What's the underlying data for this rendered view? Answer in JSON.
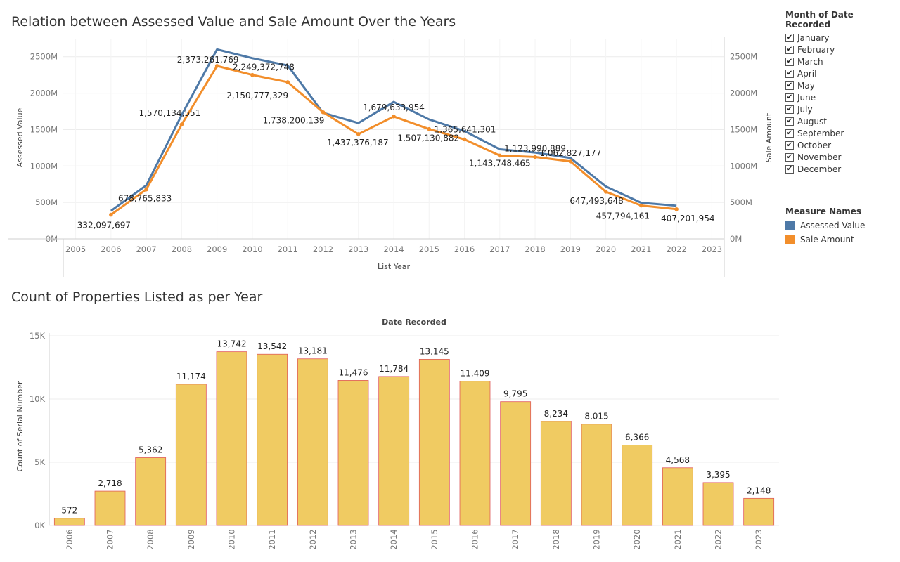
{
  "line_chart_title": "Relation between Assessed Value and Sale Amount Over the Years",
  "bar_chart_title": "Count of Properties Listed as per Year",
  "filter_legend": {
    "title": "Month of Date Recorded",
    "months": [
      "January",
      "February",
      "March",
      "April",
      "May",
      "June",
      "July",
      "August",
      "September",
      "October",
      "November",
      "December"
    ],
    "checkmark": "✔"
  },
  "measure_legend": {
    "title": "Measure Names",
    "items": [
      {
        "label": "Assessed Value",
        "color": "#4e79a7"
      },
      {
        "label": "Sale Amount",
        "color": "#f28e2b"
      }
    ]
  },
  "colors": {
    "assessed": "#4e79a7",
    "sale": "#f28e2b",
    "bar_fill": "#f0cb62",
    "bar_stroke": "#e05a5a",
    "grid": "#ececec",
    "axis": "#cfcfcf"
  },
  "chart_data": [
    {
      "type": "line",
      "title": "Relation between Assessed Value and Sale Amount Over the Years",
      "xlabel": "List Year",
      "ylabel": "Assessed Value",
      "y2label": "Sale Amount",
      "x_ticks": [
        "2005",
        "2006",
        "2007",
        "2008",
        "2009",
        "2010",
        "2011",
        "2012",
        "2013",
        "2014",
        "2015",
        "2016",
        "2017",
        "2018",
        "2019",
        "2020",
        "2021",
        "2022",
        "2023"
      ],
      "ylim": [
        0,
        2700000000
      ],
      "y_ticks": [
        {
          "value": 0,
          "label": "0M"
        },
        {
          "value": 500000000,
          "label": "500M"
        },
        {
          "value": 1000000000,
          "label": "1000M"
        },
        {
          "value": 1500000000,
          "label": "1500M"
        },
        {
          "value": 2000000000,
          "label": "2000M"
        },
        {
          "value": 2500000000,
          "label": "2500M"
        }
      ],
      "series": [
        {
          "name": "Assessed Value",
          "x": [
            2006,
            2007,
            2008,
            2009,
            2010,
            2011,
            2012,
            2013,
            2014,
            2015,
            2016,
            2017,
            2018,
            2019,
            2020,
            2021,
            2022
          ],
          "values": [
            385000000,
            735000000,
            1700000000,
            2600000000,
            2480000000,
            2380000000,
            1730000000,
            1590000000,
            1880000000,
            1640000000,
            1480000000,
            1230000000,
            1185000000,
            1110000000,
            720000000,
            495000000,
            455000000
          ]
        },
        {
          "name": "Sale Amount",
          "x": [
            2006,
            2007,
            2008,
            2009,
            2010,
            2011,
            2012,
            2013,
            2014,
            2015,
            2016,
            2017,
            2018,
            2019,
            2020,
            2021,
            2022
          ],
          "values": [
            332097697,
            678765833,
            1570134551,
            2373261769,
            2249372748,
            2150777329,
            1738200139,
            1437376187,
            1679633954,
            1507130882,
            1365641301,
            1143748465,
            1123990889,
            1062827177,
            647493648,
            457794161,
            407201954
          ]
        }
      ],
      "data_labels": [
        {
          "x": 2006,
          "text": "332,097,697"
        },
        {
          "x": 2007,
          "text": "678,765,833"
        },
        {
          "x": 2008,
          "text": "1,570,134,551"
        },
        {
          "x": 2009,
          "text": "2,373,261,769"
        },
        {
          "x": 2010,
          "text": "2,249,372,748"
        },
        {
          "x": 2011,
          "text": "2,150,777,329"
        },
        {
          "x": 2012,
          "text": "1,738,200,139"
        },
        {
          "x": 2013,
          "text": "1,437,376,187"
        },
        {
          "x": 2014,
          "text": "1,679,633,954"
        },
        {
          "x": 2015,
          "text": "1,507,130,882"
        },
        {
          "x": 2016,
          "text": "1,365,641,301"
        },
        {
          "x": 2017,
          "text": "1,143,748,465"
        },
        {
          "x": 2018,
          "text": "1,123,990,889"
        },
        {
          "x": 2019,
          "text": "1,062,827,177"
        },
        {
          "x": 2020,
          "text": "647,493,648"
        },
        {
          "x": 2021,
          "text": "457,794,161"
        },
        {
          "x": 2022,
          "text": "407,201,954"
        }
      ],
      "grid": true,
      "legend": "right"
    },
    {
      "type": "bar",
      "title": "Count of Properties Listed as per Year",
      "header": "Date Recorded",
      "ylabel": "Count of Serial Number",
      "categories": [
        "2006",
        "2007",
        "2008",
        "2009",
        "2010",
        "2011",
        "2012",
        "2013",
        "2014",
        "2015",
        "2016",
        "2017",
        "2018",
        "2019",
        "2020",
        "2021",
        "2022",
        "2023"
      ],
      "values": [
        572,
        2718,
        5362,
        11174,
        13742,
        13542,
        13181,
        11476,
        11784,
        13145,
        11409,
        9795,
        8234,
        8015,
        6366,
        4568,
        3395,
        2148
      ],
      "value_labels": [
        "572",
        "2,718",
        "5,362",
        "11,174",
        "13,742",
        "13,542",
        "13,181",
        "11,476",
        "11,784",
        "13,145",
        "11,409",
        "9,795",
        "8,234",
        "8,015",
        "6,366",
        "4,568",
        "3,395",
        "2,148"
      ],
      "ylim": [
        0,
        15000
      ],
      "y_ticks": [
        {
          "value": 0,
          "label": "0K"
        },
        {
          "value": 5000,
          "label": "5K"
        },
        {
          "value": 10000,
          "label": "10K"
        },
        {
          "value": 15000,
          "label": "15K"
        }
      ],
      "grid": true
    }
  ]
}
